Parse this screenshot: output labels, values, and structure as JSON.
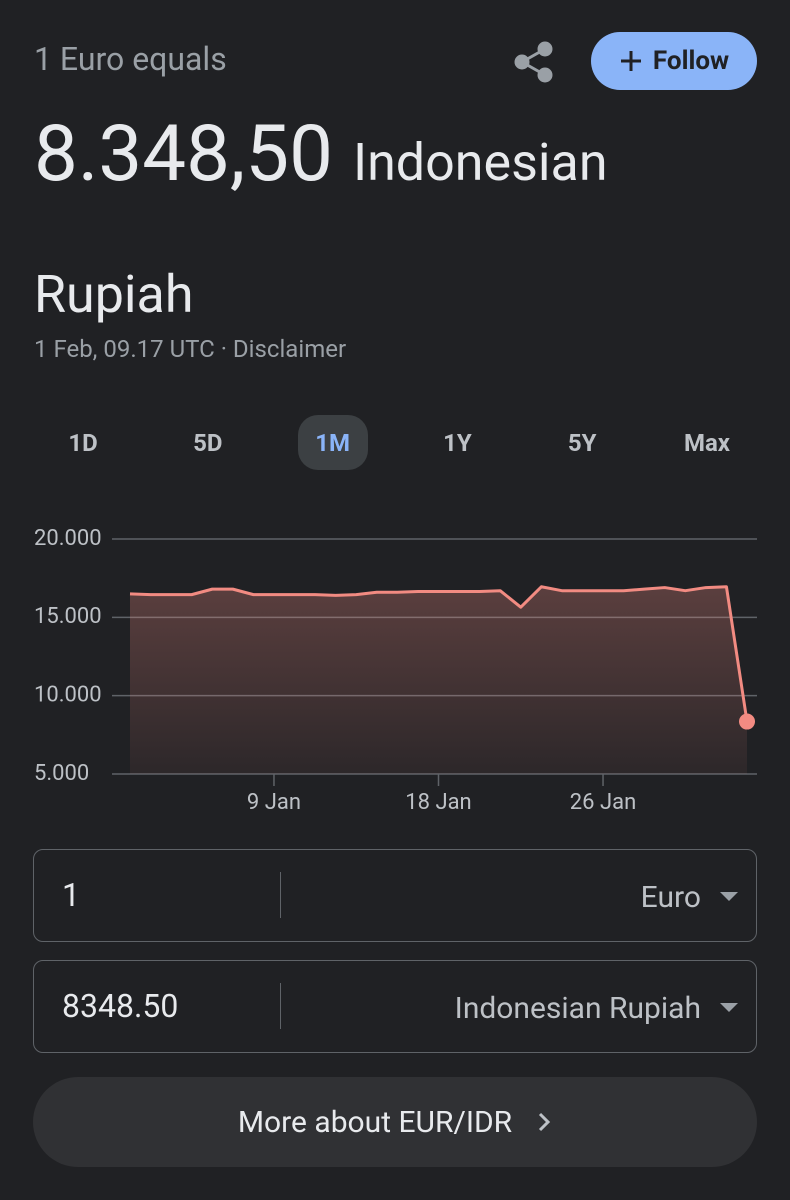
{
  "header": {
    "label": "1 Euro equals",
    "follow": "Follow",
    "value": "8.348,50",
    "currency": "Indonesian Rupiah",
    "meta": "1 Feb, 09.17 UTC · Disclaimer"
  },
  "ranges": {
    "items": [
      "1D",
      "5D",
      "1M",
      "1Y",
      "5Y",
      "Max"
    ],
    "selected_index": 2
  },
  "chart_data": {
    "type": "area",
    "categories": [
      null,
      null,
      null,
      null,
      null,
      null,
      null,
      "9 Jan",
      null,
      null,
      null,
      null,
      null,
      null,
      null,
      "18 Jan",
      null,
      null,
      null,
      null,
      null,
      null,
      null,
      "26 Jan",
      null,
      null,
      null,
      null,
      null,
      null,
      null
    ],
    "values": [
      16500,
      16450,
      16450,
      16450,
      16800,
      16800,
      16450,
      16450,
      16450,
      16450,
      16400,
      16450,
      16600,
      16600,
      16650,
      16650,
      16650,
      16650,
      16700,
      15650,
      16950,
      16700,
      16700,
      16700,
      16700,
      16800,
      16900,
      16700,
      16900,
      16950,
      8348.5
    ],
    "color": "#f28b82",
    "ylim": [
      5000,
      20000
    ],
    "yticks": [
      {
        "value": 5000,
        "label": "5.000"
      },
      {
        "value": 10000,
        "label": "10.000"
      },
      {
        "value": 15000,
        "label": "15.000"
      },
      {
        "value": 20000,
        "label": "20.000"
      }
    ],
    "grid": true
  },
  "converter": {
    "rows": [
      {
        "amount": "1",
        "currency": "Euro"
      },
      {
        "amount": "8348.50",
        "currency": "Indonesian Rupiah"
      }
    ]
  },
  "more_button": "More about EUR/IDR"
}
